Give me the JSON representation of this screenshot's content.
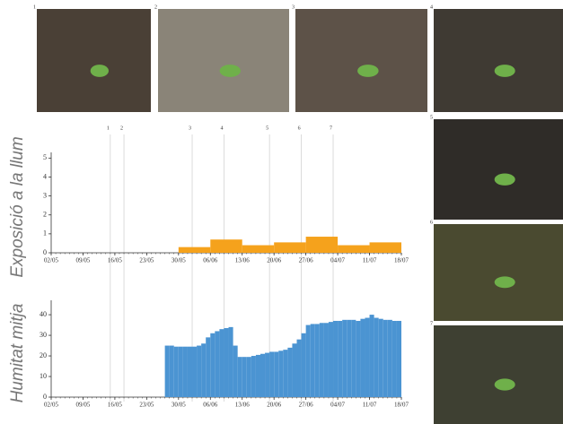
{
  "photos": [
    "1",
    "2",
    "3",
    "4",
    "5",
    "6",
    "7"
  ],
  "events": [
    {
      "label": "1",
      "x": "15/05"
    },
    {
      "label": "2",
      "x": "18/05"
    },
    {
      "label": "3",
      "x": "02/06"
    },
    {
      "label": "4",
      "x": "09/06"
    },
    {
      "label": "5",
      "x": "19/06"
    },
    {
      "label": "6",
      "x": "26/06"
    },
    {
      "label": "7",
      "x": "03/07"
    }
  ],
  "chart_data": [
    {
      "type": "bar",
      "y_label": "Exposició a la llum",
      "color": "#f5a21c",
      "x": [
        "02/05",
        "09/05",
        "16/05",
        "23/05",
        "30/05",
        "06/06",
        "13/06",
        "20/06",
        "27/06",
        "04/07",
        "11/07"
      ],
      "values": [
        0,
        0,
        0,
        0,
        0.3,
        0.7,
        0.4,
        0.55,
        0.85,
        0.4,
        0.55
      ],
      "xlim": [
        "02/05",
        "18/07"
      ],
      "xticks": [
        "02/05",
        "09/05",
        "16/05",
        "23/05",
        "30/05",
        "06/06",
        "13/06",
        "20/06",
        "27/06",
        "04/07",
        "11/07",
        "18/07"
      ],
      "ylim": [
        0,
        5.3
      ],
      "yticks": [
        0,
        1,
        2,
        3,
        4,
        5
      ]
    },
    {
      "type": "bar",
      "y_label": "Humitat mitja",
      "color": "#4b94d2",
      "x": [
        "27/05",
        "28/05",
        "29/05",
        "30/05",
        "31/05",
        "01/06",
        "02/06",
        "03/06",
        "04/06",
        "05/06",
        "06/06",
        "07/06",
        "08/06",
        "09/06",
        "10/06",
        "11/06",
        "12/06",
        "13/06",
        "14/06",
        "15/06",
        "16/06",
        "17/06",
        "18/06",
        "19/06",
        "20/06",
        "21/06",
        "22/06",
        "23/06",
        "24/06",
        "25/06",
        "26/06",
        "27/06",
        "28/06",
        "29/06",
        "30/06",
        "01/07",
        "02/07",
        "03/07",
        "04/07",
        "05/07",
        "06/07",
        "07/07",
        "08/07",
        "09/07",
        "10/07",
        "11/07",
        "12/07",
        "13/07",
        "14/07",
        "15/07",
        "16/07",
        "17/07"
      ],
      "values": [
        25,
        25,
        24.5,
        24.5,
        24.5,
        24.5,
        24.5,
        25,
        26,
        29,
        31,
        32,
        33,
        33.5,
        34,
        25,
        19.5,
        19.5,
        19.5,
        20,
        20.5,
        21,
        21.5,
        22,
        22,
        22.5,
        23,
        24,
        26,
        28,
        31,
        35,
        35.5,
        35.5,
        36,
        36,
        36.5,
        37,
        37,
        37.5,
        37.5,
        37.5,
        37,
        38,
        38.5,
        40,
        38.5,
        38,
        37.5,
        37.5,
        37,
        37
      ],
      "xlim": [
        "02/05",
        "18/07"
      ],
      "xticks": [
        "02/05",
        "09/05",
        "16/05",
        "23/05",
        "30/05",
        "06/06",
        "13/06",
        "20/06",
        "27/06",
        "04/07",
        "11/07",
        "18/07"
      ],
      "ylim": [
        0,
        47
      ],
      "yticks": [
        0,
        10,
        20,
        30,
        40
      ]
    }
  ]
}
